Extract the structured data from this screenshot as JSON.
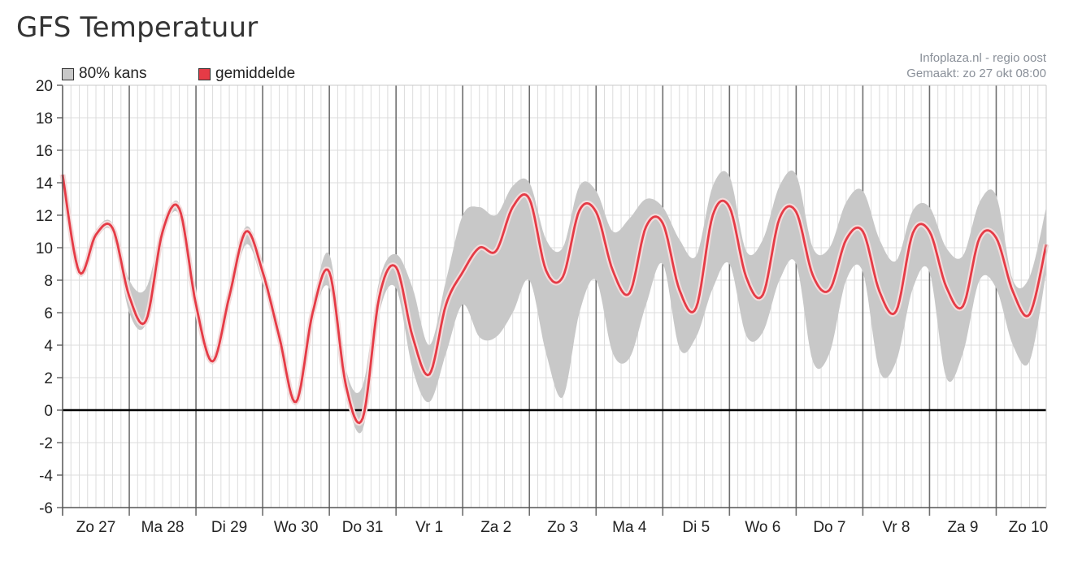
{
  "page": {
    "title": "GFS Temperatuur"
  },
  "credits": {
    "line1": "Infoplaza.nl - regio oost",
    "line2": "Gemaakt: zo 27 okt 08:00"
  },
  "legend": {
    "band_label": "80% kans",
    "mean_label": "gemiddelde",
    "band_color": "#c8c8c8",
    "mean_color": "#e53b46"
  },
  "chart_data": {
    "type": "area",
    "title": "GFS Temperatuur",
    "xlabel": "",
    "ylabel": "",
    "ylim": [
      -6,
      20
    ],
    "yticks": [
      20,
      18,
      16,
      14,
      12,
      10,
      8,
      6,
      4,
      2,
      0,
      -2,
      -4,
      -6
    ],
    "x_unit": "days since start of Zo 27 (00:00)",
    "xlim": [
      0,
      14.75
    ],
    "day_labels": [
      "Zo 27",
      "Ma 28",
      "Di 29",
      "Wo 30",
      "Do 31",
      "Vr 1",
      "Za 2",
      "Zo 3",
      "Ma 4",
      "Di 5",
      "Wo 6",
      "Do 7",
      "Vr 8",
      "Za 9",
      "Zo 10"
    ],
    "grid": true,
    "zero_line": true,
    "series": [
      {
        "name": "gemiddelde",
        "x": [
          0,
          0.25,
          0.5,
          0.75,
          1.0,
          1.25,
          1.5,
          1.75,
          2.0,
          2.25,
          2.5,
          2.75,
          3.0,
          3.25,
          3.5,
          3.75,
          4.0,
          4.25,
          4.5,
          4.75,
          5.0,
          5.25,
          5.5,
          5.75,
          6.0,
          6.25,
          6.5,
          6.75,
          7.0,
          7.25,
          7.5,
          7.75,
          8.0,
          8.25,
          8.5,
          8.75,
          9.0,
          9.25,
          9.5,
          9.75,
          10.0,
          10.25,
          10.5,
          10.75,
          11.0,
          11.25,
          11.5,
          11.75,
          12.0,
          12.25,
          12.5,
          12.75,
          13.0,
          13.25,
          13.5,
          13.75,
          14.0,
          14.25,
          14.5,
          14.75
        ],
        "y": [
          14.5,
          8.5,
          10.8,
          11.2,
          7.0,
          5.5,
          11.0,
          12.4,
          6.5,
          3.0,
          7.0,
          11.0,
          8.5,
          4.5,
          0.5,
          6.0,
          8.5,
          1.5,
          -0.5,
          7.0,
          8.8,
          4.5,
          2.2,
          6.5,
          8.5,
          10.0,
          9.8,
          12.5,
          13.0,
          8.6,
          8.2,
          12.3,
          12.2,
          8.6,
          7.2,
          11.3,
          11.5,
          7.4,
          6.3,
          12.0,
          12.5,
          8.2,
          7.1,
          11.8,
          12.2,
          8.3,
          7.4,
          10.5,
          11.0,
          7.3,
          6.1,
          10.9,
          11.0,
          7.6,
          6.4,
          10.6,
          10.6,
          7.3,
          5.9,
          10.2
        ]
      },
      {
        "name": "80% kans",
        "x": [
          0,
          0.25,
          0.5,
          0.75,
          1.0,
          1.25,
          1.5,
          1.75,
          2.0,
          2.25,
          2.5,
          2.75,
          3.0,
          3.25,
          3.5,
          3.75,
          4.0,
          4.25,
          4.5,
          4.75,
          5.0,
          5.25,
          5.5,
          5.75,
          6.0,
          6.25,
          6.5,
          6.75,
          7.0,
          7.25,
          7.5,
          7.75,
          8.0,
          8.25,
          8.5,
          8.75,
          9.0,
          9.25,
          9.5,
          9.75,
          10.0,
          10.25,
          10.5,
          10.75,
          11.0,
          11.25,
          11.5,
          11.75,
          12.0,
          12.25,
          12.5,
          12.75,
          13.0,
          13.25,
          13.5,
          13.75,
          14.0,
          14.25,
          14.5,
          14.75
        ],
        "low": [
          14.3,
          8.3,
          10.5,
          10.9,
          6.0,
          5.3,
          10.6,
          12.0,
          6.0,
          2.8,
          6.3,
          10.2,
          7.8,
          4.1,
          0.3,
          5.5,
          7.5,
          1.0,
          -1.2,
          6.0,
          7.5,
          2.5,
          0.5,
          3.5,
          6.5,
          4.5,
          4.5,
          6.0,
          8.0,
          3.5,
          0.8,
          6.0,
          8.0,
          3.5,
          3.2,
          6.5,
          9.0,
          3.8,
          4.5,
          7.5,
          9.0,
          4.6,
          4.8,
          8.0,
          9.0,
          3.0,
          3.5,
          8.0,
          8.5,
          2.4,
          3.0,
          7.5,
          8.5,
          2.0,
          3.5,
          8.0,
          7.5,
          4.0,
          3.0,
          8.5
        ],
        "high": [
          14.7,
          8.7,
          11.1,
          11.5,
          8.0,
          7.5,
          11.3,
          12.7,
          7.0,
          3.3,
          7.5,
          11.3,
          9.0,
          5.0,
          0.8,
          6.5,
          9.6,
          2.5,
          1.5,
          8.0,
          9.6,
          7.5,
          4.0,
          8.0,
          12.0,
          12.5,
          12.0,
          13.8,
          14.0,
          10.5,
          10.0,
          13.8,
          13.5,
          11.0,
          11.8,
          13.0,
          12.5,
          10.5,
          9.5,
          13.8,
          14.4,
          9.8,
          10.5,
          13.8,
          14.5,
          10.0,
          10.0,
          12.8,
          13.5,
          10.5,
          9.2,
          12.3,
          12.5,
          10.0,
          9.5,
          12.8,
          13.2,
          8.0,
          8.2,
          12.5
        ]
      }
    ]
  }
}
